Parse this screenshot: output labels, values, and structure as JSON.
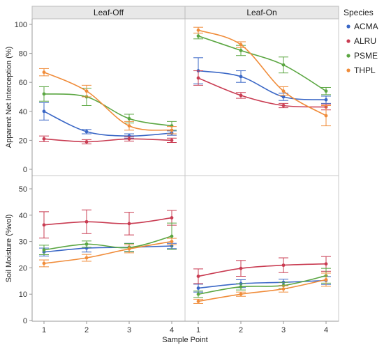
{
  "chart_data": {
    "type": "line",
    "facets": [
      "Leaf-Off",
      "Leaf-On"
    ],
    "xlabel": "Sample Point",
    "x": [
      1,
      2,
      3,
      4
    ],
    "xticks": [
      "1",
      "2",
      "3",
      "4"
    ],
    "legend": {
      "title": "Species",
      "position": "right"
    },
    "panels": [
      {
        "ylabel": "Apparent Net Interception (%)",
        "ylim": [
          0,
          100
        ],
        "yticks": [
          "0",
          "20",
          "40",
          "60",
          "80",
          "100"
        ],
        "series": {
          "Leaf-Off": [
            {
              "name": "ACMA",
              "color": "#3a67c6",
              "values": [
                40,
                26,
                23,
                25
              ],
              "err": [
                6,
                1.5,
                1.5,
                1.5
              ]
            },
            {
              "name": "ALRU",
              "color": "#c93c52",
              "values": [
                21,
                19,
                21,
                20
              ],
              "err": [
                2,
                1.5,
                1.5,
                1.5
              ]
            },
            {
              "name": "PSME",
              "color": "#5aa641",
              "values": [
                52,
                50,
                35,
                30
              ],
              "err": [
                5,
                6,
                3,
                3
              ]
            },
            {
              "name": "THPL",
              "color": "#f08c3a",
              "values": [
                67,
                54,
                30,
                27
              ],
              "err": [
                2.5,
                4,
                3,
                2.5
              ]
            }
          ],
          "Leaf-On": [
            {
              "name": "ACMA",
              "color": "#3a67c6",
              "values": [
                68,
                64,
                50,
                48
              ],
              "err": [
                9,
                4,
                2.5,
                2.5
              ]
            },
            {
              "name": "ALRU",
              "color": "#c93c52",
              "values": [
                63,
                51,
                44,
                43
              ],
              "err": [
                5,
                2,
                1.5,
                2
              ]
            },
            {
              "name": "PSME",
              "color": "#5aa641",
              "values": [
                92,
                82,
                72,
                54
              ],
              "err": [
                2,
                3.5,
                5.5,
                2.5
              ]
            },
            {
              "name": "THPL",
              "color": "#f08c3a",
              "values": [
                96,
                86,
                54,
                37
              ],
              "err": [
                2,
                2,
                3,
                7
              ]
            }
          ]
        }
      },
      {
        "ylabel": "Soil Moisture (%vol)",
        "ylim": [
          0,
          50
        ],
        "yticks": [
          "0",
          "10",
          "20",
          "30",
          "40",
          "50"
        ],
        "series": {
          "Leaf-Off": [
            {
              "name": "ACMA",
              "color": "#3a67c6",
              "values": [
                26,
                27.5,
                27.8,
                28.3
              ],
              "err": [
                1.5,
                1.5,
                1.5,
                1.0
              ]
            },
            {
              "name": "ALRU",
              "color": "#c93c52",
              "values": [
                36.3,
                37.5,
                36.8,
                39
              ],
              "err": [
                5,
                4.5,
                4.3,
                2.8
              ]
            },
            {
              "name": "PSME",
              "color": "#5aa641",
              "values": [
                26.8,
                29,
                27.7,
                32
              ],
              "err": [
                1.8,
                1.2,
                1.5,
                5
              ]
            },
            {
              "name": "THPL",
              "color": "#f08c3a",
              "values": [
                21.7,
                23.8,
                27.2,
                30
              ],
              "err": [
                1.3,
                1.3,
                1.5,
                1.2
              ]
            }
          ],
          "Leaf-On": [
            {
              "name": "ACMA",
              "color": "#3a67c6",
              "values": [
                12.3,
                14,
                14.5,
                15.2
              ],
              "err": [
                1.5,
                1.5,
                1.2,
                1.5
              ]
            },
            {
              "name": "ALRU",
              "color": "#c93c52",
              "values": [
                16.8,
                19.8,
                21,
                21.5
              ],
              "err": [
                2.8,
                3,
                2.8,
                2.8
              ]
            },
            {
              "name": "PSME",
              "color": "#5aa641",
              "values": [
                10,
                12.8,
                13.3,
                17
              ],
              "err": [
                1.2,
                1.2,
                1.2,
                2.8
              ]
            },
            {
              "name": "THPL",
              "color": "#f08c3a",
              "values": [
                7.3,
                10,
                12,
                15.5
              ],
              "err": [
                0.8,
                0.8,
                1.2,
                2.5
              ]
            }
          ]
        }
      }
    ]
  }
}
